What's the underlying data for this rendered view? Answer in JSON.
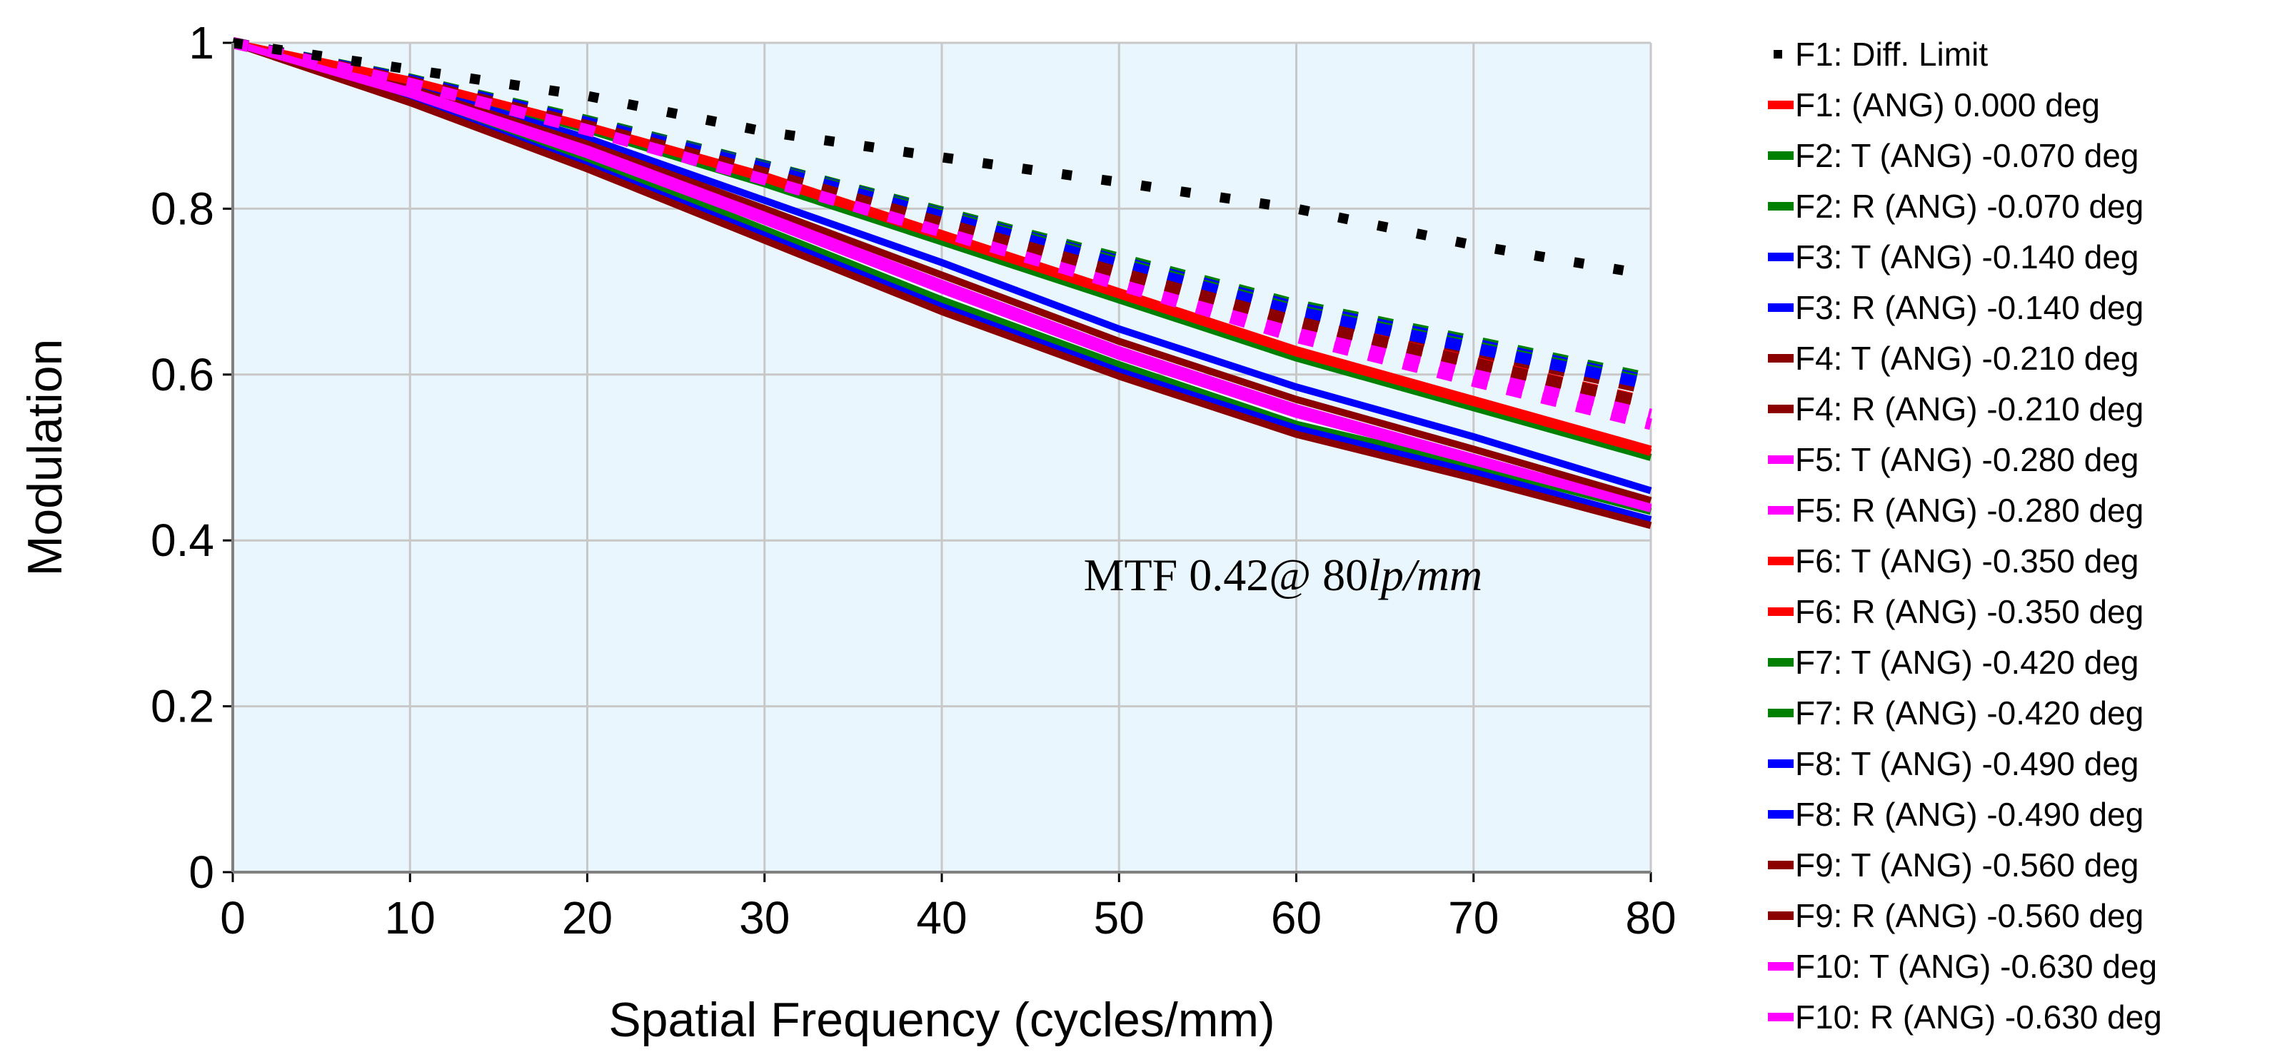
{
  "chart_data": {
    "type": "line",
    "title": "",
    "xlabel": "Spatial Frequency (cycles/mm)",
    "ylabel": "Modulation",
    "xlim": [
      0,
      80
    ],
    "ylim": [
      0,
      1
    ],
    "xticks": [
      "0",
      "10",
      "20",
      "30",
      "40",
      "50",
      "60",
      "70",
      "80"
    ],
    "yticks": [
      "0",
      "0.2",
      "0.4",
      "0.6",
      "0.8",
      "1"
    ],
    "grid": true,
    "plot_background": "#eaf6fd",
    "legend_position": "right",
    "annotation": {
      "prefix": "MTF 0.42@ 80",
      "unit": "lp/mm",
      "x": 48,
      "y": 0.34
    },
    "x": [
      0,
      10,
      20,
      30,
      40,
      50,
      60,
      70,
      80
    ],
    "series": [
      {
        "name": "F1: Diff. Limit",
        "color": "#000000",
        "style": "dotted",
        "values": [
          1.0,
          0.968,
          0.936,
          0.893,
          0.862,
          0.832,
          0.8,
          0.756,
          0.72
        ]
      },
      {
        "name": "F1: (ANG) 0.000 deg",
        "color": "#ff0000",
        "style": "solid",
        "values": [
          1.0,
          0.955,
          0.9,
          0.84,
          0.77,
          0.7,
          0.63,
          0.57,
          0.51
        ]
      },
      {
        "name": "F2: T (ANG) -0.070 deg",
        "color": "#008000",
        "style": "solid",
        "values": [
          1.0,
          0.953,
          0.895,
          0.83,
          0.76,
          0.69,
          0.62,
          0.56,
          0.5
        ]
      },
      {
        "name": "F2: R (ANG) -0.070 deg",
        "color": "#008000",
        "style": "dashed",
        "values": [
          1.0,
          0.956,
          0.906,
          0.852,
          0.796,
          0.74,
          0.684,
          0.64,
          0.595
        ]
      },
      {
        "name": "F3: T (ANG) -0.140 deg",
        "color": "#0000ff",
        "style": "solid",
        "values": [
          1.0,
          0.948,
          0.885,
          0.81,
          0.735,
          0.655,
          0.585,
          0.525,
          0.46
        ]
      },
      {
        "name": "F3: R (ANG) -0.140 deg",
        "color": "#0000ff",
        "style": "dashed",
        "values": [
          1.0,
          0.955,
          0.905,
          0.851,
          0.794,
          0.737,
          0.681,
          0.637,
          0.592
        ]
      },
      {
        "name": "F4: T (ANG) -0.210 deg",
        "color": "#8b0000",
        "style": "solid",
        "values": [
          1.0,
          0.945,
          0.878,
          0.8,
          0.72,
          0.64,
          0.57,
          0.51,
          0.448
        ]
      },
      {
        "name": "F4: R (ANG) -0.210 deg",
        "color": "#8b0000",
        "style": "dashed",
        "values": [
          1.0,
          0.954,
          0.903,
          0.848,
          0.79,
          0.732,
          0.674,
          0.628,
          0.582
        ]
      },
      {
        "name": "F5: T (ANG) -0.280 deg",
        "color": "#ff00ff",
        "style": "solid",
        "values": [
          1.0,
          0.942,
          0.872,
          0.792,
          0.71,
          0.63,
          0.56,
          0.5,
          0.44
        ]
      },
      {
        "name": "F5: R (ANG) -0.280 deg",
        "color": "#ff00ff",
        "style": "dashed",
        "values": [
          1.0,
          0.952,
          0.898,
          0.84,
          0.778,
          0.716,
          0.656,
          0.604,
          0.552
        ]
      },
      {
        "name": "F6: T (ANG) -0.350 deg",
        "color": "#ff0000",
        "style": "solid",
        "values": [
          1.0,
          0.954,
          0.898,
          0.836,
          0.766,
          0.696,
          0.626,
          0.566,
          0.506
        ]
      },
      {
        "name": "F6: R (ANG) -0.350 deg",
        "color": "#ff0000",
        "style": "dashed",
        "values": [
          1.0,
          0.953,
          0.9,
          0.844,
          0.784,
          0.724,
          0.664,
          0.615,
          0.566
        ]
      },
      {
        "name": "F7: T (ANG) -0.420 deg",
        "color": "#008000",
        "style": "solid",
        "values": [
          1.0,
          0.935,
          0.86,
          0.775,
          0.69,
          0.612,
          0.54,
          0.49,
          0.435
        ]
      },
      {
        "name": "F7: R (ANG) -0.420 deg",
        "color": "#008000",
        "style": "dashed",
        "values": [
          1.0,
          0.956,
          0.905,
          0.85,
          0.793,
          0.735,
          0.678,
          0.634,
          0.59
        ]
      },
      {
        "name": "F8: T (ANG) -0.490 deg",
        "color": "#0000ff",
        "style": "solid",
        "values": [
          1.0,
          0.93,
          0.852,
          0.768,
          0.682,
          0.604,
          0.535,
          0.482,
          0.425
        ]
      },
      {
        "name": "F8: R (ANG) -0.490 deg",
        "color": "#0000ff",
        "style": "dashed",
        "values": [
          1.0,
          0.955,
          0.904,
          0.849,
          0.791,
          0.733,
          0.676,
          0.632,
          0.588
        ]
      },
      {
        "name": "F9: T (ANG) -0.560 deg",
        "color": "#8b0000",
        "style": "solid",
        "values": [
          1.0,
          0.928,
          0.848,
          0.762,
          0.676,
          0.598,
          0.528,
          0.475,
          0.418
        ]
      },
      {
        "name": "F9: R (ANG) -0.560 deg",
        "color": "#8b0000",
        "style": "dashed",
        "values": [
          1.0,
          0.953,
          0.9,
          0.843,
          0.783,
          0.723,
          0.664,
          0.614,
          0.565
        ]
      },
      {
        "name": "F10: T (ANG) -0.630 deg",
        "color": "#ff00ff",
        "style": "solid",
        "values": [
          1.0,
          0.938,
          0.865,
          0.785,
          0.702,
          0.622,
          0.552,
          0.495,
          0.438
        ]
      },
      {
        "name": "F10: R (ANG) -0.630 deg",
        "color": "#ff00ff",
        "style": "dashed",
        "values": [
          1.0,
          0.951,
          0.895,
          0.835,
          0.772,
          0.708,
          0.645,
          0.592,
          0.54
        ]
      }
    ]
  }
}
